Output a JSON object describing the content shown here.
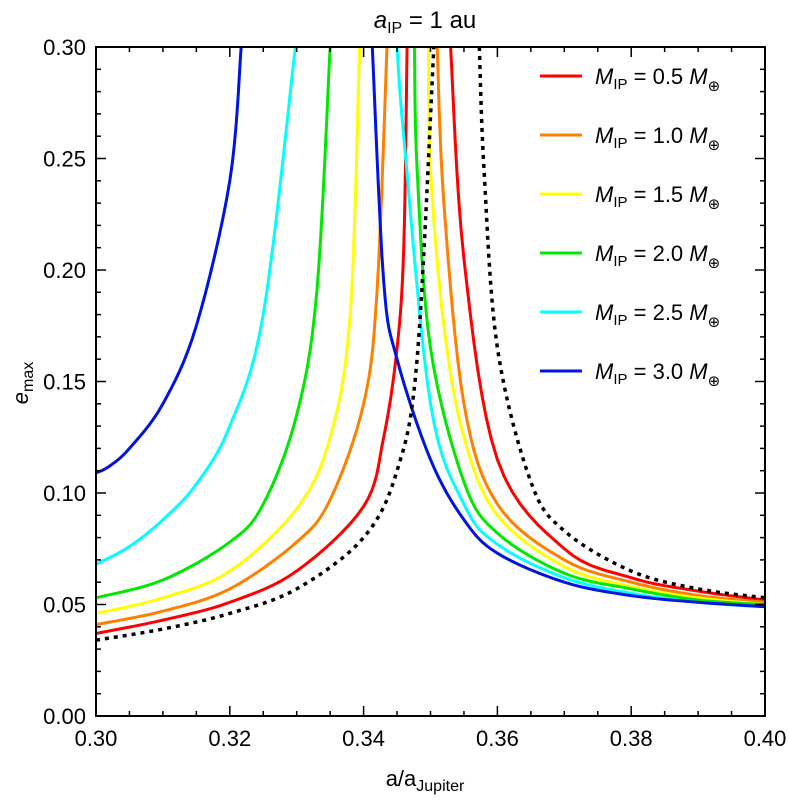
{
  "chart_data": {
    "type": "line",
    "title": {
      "var": "a",
      "sub": "IP",
      "rest": " = 1 au"
    },
    "xlabel": {
      "main": "a/a",
      "sub": "Jupiter"
    },
    "ylabel": {
      "main": "e",
      "sub": "max"
    },
    "xlim": [
      0.3,
      0.4
    ],
    "ylim": [
      0.0,
      0.3
    ],
    "xticks": [
      0.3,
      0.32,
      0.34,
      0.36,
      0.38,
      0.4
    ],
    "xtick_labels": [
      "0.30",
      "0.32",
      "0.34",
      "0.36",
      "0.38",
      "0.40"
    ],
    "yticks": [
      0.0,
      0.05,
      0.1,
      0.15,
      0.2,
      0.25,
      0.3
    ],
    "ytick_labels": [
      "0.00",
      "0.05",
      "0.10",
      "0.15",
      "0.20",
      "0.25",
      "0.30"
    ],
    "grid": false,
    "legend_position": "top-right",
    "legend_unit": "⊕",
    "series": [
      {
        "name": "M_IP = 0.5 M_⊕",
        "label_var": "M",
        "label_sub": "IP",
        "label_value": " = 0.5 ",
        "color": "#ff0000",
        "style": "solid",
        "pole": 0.3495,
        "left_side_pole": 0.3472,
        "right_side_pole": 0.3518,
        "x": [
          0.3,
          0.31,
          0.32,
          0.33,
          0.34,
          0.343,
          0.345,
          0.346,
          0.3465,
          0.353,
          0.355,
          0.36,
          0.37,
          0.38,
          0.39,
          0.4
        ],
        "y": [
          0.037,
          0.043,
          0.051,
          0.065,
          0.094,
          0.125,
          0.165,
          0.21,
          0.3,
          0.3,
          0.205,
          0.115,
          0.075,
          0.062,
          0.056,
          0.052
        ]
      },
      {
        "name": "M_IP = 1.0 M_⊕",
        "label_var": "M",
        "label_sub": "IP",
        "label_value": " = 1.0 ",
        "color": "#ff8000",
        "style": "solid",
        "pole": 0.3475,
        "left_side_pole": 0.3437,
        "right_side_pole": 0.3513,
        "x": [
          0.3,
          0.31,
          0.32,
          0.33,
          0.335,
          0.34,
          0.342,
          0.3435,
          0.351,
          0.352,
          0.355,
          0.36,
          0.37,
          0.38,
          0.39,
          0.4
        ],
        "y": [
          0.041,
          0.047,
          0.057,
          0.078,
          0.097,
          0.14,
          0.19,
          0.3,
          0.3,
          0.23,
          0.14,
          0.095,
          0.07,
          0.06,
          0.054,
          0.051
        ]
      },
      {
        "name": "M_IP = 1.5 M_⊕",
        "label_var": "M",
        "label_sub": "IP",
        "label_value": " = 1.5 ",
        "color": "#ffff00",
        "style": "solid",
        "pole": 0.3445,
        "left_side_pole": 0.3394,
        "right_side_pole": 0.3496,
        "x": [
          0.3,
          0.31,
          0.32,
          0.33,
          0.335,
          0.338,
          0.3394,
          0.3497,
          0.35,
          0.352,
          0.355,
          0.36,
          0.37,
          0.38,
          0.39,
          0.4
        ],
        "y": [
          0.046,
          0.053,
          0.065,
          0.093,
          0.125,
          0.18,
          0.3,
          0.3,
          0.245,
          0.175,
          0.125,
          0.09,
          0.067,
          0.058,
          0.053,
          0.05
        ]
      },
      {
        "name": "M_IP = 2.0 M_⊕",
        "label_var": "M",
        "label_sub": "IP",
        "label_value": " = 2.0 ",
        "color": "#00e800",
        "style": "solid",
        "pole": 0.3413,
        "left_side_pole": 0.335,
        "right_side_pole": 0.3476,
        "x": [
          0.3,
          0.31,
          0.32,
          0.325,
          0.33,
          0.333,
          0.335,
          0.3476,
          0.348,
          0.35,
          0.355,
          0.36,
          0.37,
          0.38,
          0.39,
          0.4
        ],
        "y": [
          0.053,
          0.061,
          0.078,
          0.095,
          0.135,
          0.19,
          0.3,
          0.3,
          0.245,
          0.165,
          0.105,
          0.082,
          0.064,
          0.057,
          0.052,
          0.05
        ]
      },
      {
        "name": "M_IP = 2.5 M_⊕",
        "label_var": "M",
        "label_sub": "IP",
        "label_value": " = 2.5 ",
        "color": "#00ffff",
        "style": "solid",
        "pole": 0.3375,
        "left_side_pole": 0.3298,
        "right_side_pole": 0.345,
        "x": [
          0.3,
          0.305,
          0.31,
          0.315,
          0.32,
          0.325,
          0.3298,
          0.345,
          0.346,
          0.35,
          0.355,
          0.36,
          0.37,
          0.38,
          0.39,
          0.4
        ],
        "y": [
          0.068,
          0.076,
          0.088,
          0.104,
          0.13,
          0.18,
          0.3,
          0.3,
          0.26,
          0.14,
          0.095,
          0.077,
          0.062,
          0.055,
          0.051,
          0.049
        ]
      },
      {
        "name": "M_IP = 3.0 M_⊕",
        "label_var": "M",
        "label_sub": "IP",
        "label_value": " = 3.0 ",
        "color": "#0014e0",
        "style": "solid",
        "pole": 0.3315,
        "left_side_pole": 0.3217,
        "right_side_pole": 0.3413,
        "x": [
          0.3,
          0.302,
          0.305,
          0.31,
          0.315,
          0.32,
          0.3217,
          0.3413,
          0.343,
          0.345,
          0.35,
          0.355,
          0.36,
          0.37,
          0.38,
          0.39,
          0.4
        ],
        "y": [
          0.109,
          0.112,
          0.12,
          0.14,
          0.175,
          0.24,
          0.3,
          0.3,
          0.195,
          0.16,
          0.115,
          0.088,
          0.073,
          0.06,
          0.054,
          0.051,
          0.049
        ]
      },
      {
        "name": "",
        "color": "#000000",
        "style": "dotted",
        "pole": 0.3533,
        "left_side_pole": 0.3505,
        "right_side_pole": 0.3573,
        "x": [
          0.3,
          0.31,
          0.32,
          0.33,
          0.34,
          0.345,
          0.348,
          0.3505,
          0.3573,
          0.358,
          0.36,
          0.365,
          0.37,
          0.38,
          0.39,
          0.4
        ],
        "y": [
          0.034,
          0.039,
          0.046,
          0.057,
          0.08,
          0.11,
          0.16,
          0.3,
          0.3,
          0.245,
          0.165,
          0.105,
          0.083,
          0.065,
          0.057,
          0.053
        ]
      }
    ]
  }
}
